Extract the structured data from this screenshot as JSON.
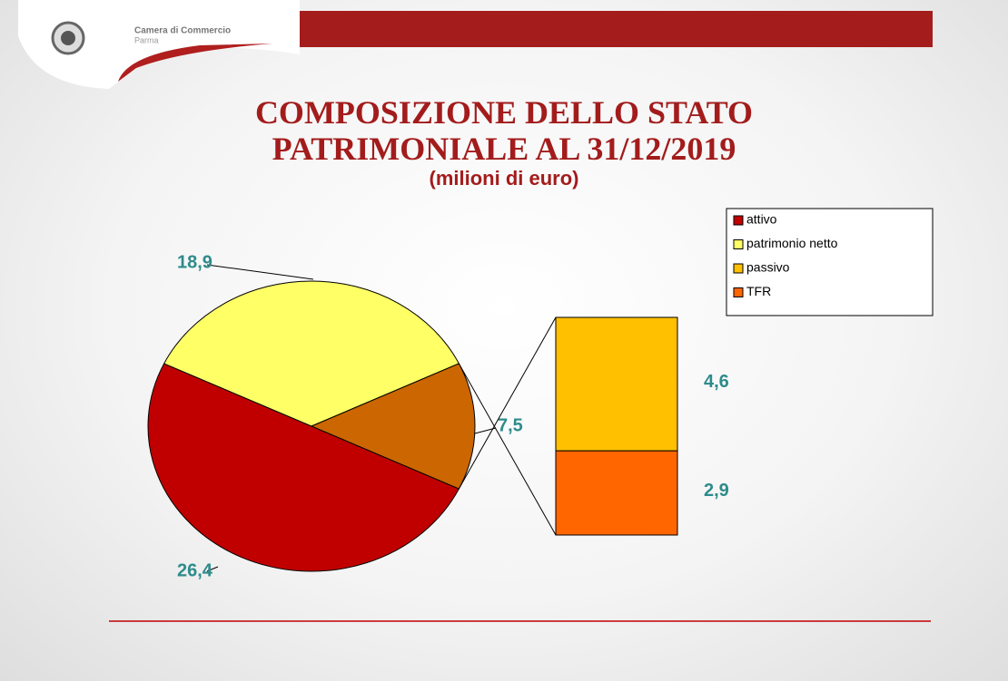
{
  "header": {
    "org_line1": "Camera di Commercio",
    "org_line2": "Parma"
  },
  "chart_data": {
    "type": "bar-of-pie",
    "title": "COMPOSIZIONE DELLO STATO PATRIMONIALE AL 31/12/2019",
    "subtitle": "(milioni di euro)",
    "pie": {
      "values": [
        26.4,
        18.9,
        7.5
      ],
      "value_labels": [
        "26,4",
        "18,9",
        "7,5"
      ],
      "colors": [
        "#c00000",
        "#ffff66",
        "#cc6600"
      ]
    },
    "bar": {
      "values": [
        4.6,
        2.9
      ],
      "value_labels": [
        "4,6",
        "2,9"
      ],
      "colors": [
        "#ffc000",
        "#ff6600"
      ]
    },
    "legend": {
      "labels": [
        "attivo",
        "patrimonio netto",
        "passivo",
        "TFR"
      ],
      "colors": [
        "#c00000",
        "#ffff66",
        "#ffc000",
        "#ff6600"
      ],
      "position": "upper right"
    }
  }
}
